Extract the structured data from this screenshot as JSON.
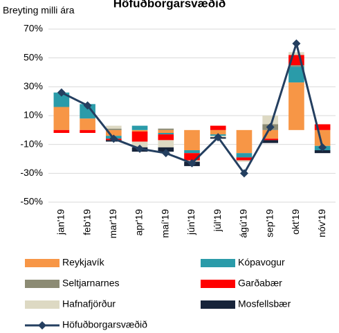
{
  "chart_data": {
    "type": "bar",
    "title": "Höfuðborgarsvæðið",
    "subtitle": "Breyting milli ára",
    "stacked": true,
    "grid": true,
    "categories": [
      "jan'19",
      "feb'19",
      "mar'19",
      "apr'19",
      "maí'19",
      "jún'19",
      "júl'19",
      "ágú'19",
      "sep'19",
      "okt'19",
      "nóv'19"
    ],
    "ylim": [
      -50,
      70
    ],
    "yticks": [
      {
        "value": -50,
        "label": "-50%"
      },
      {
        "value": -30,
        "label": "-30%"
      },
      {
        "value": -10,
        "label": "-10%"
      },
      {
        "value": 10,
        "label": "10%"
      },
      {
        "value": 30,
        "label": "30%"
      },
      {
        "value": 50,
        "label": "50%"
      },
      {
        "value": 70,
        "label": "70%"
      }
    ],
    "series": [
      {
        "name": "Reykjavík",
        "color": "#f79646",
        "values": [
          16,
          8,
          -4,
          -1,
          -2,
          -14,
          -3,
          -16,
          -6,
          33,
          -11
        ]
      },
      {
        "name": "Kópavogur",
        "color": "#2a9ba9",
        "values": [
          10,
          10,
          -2,
          3,
          -1,
          -2,
          -1,
          -3,
          0,
          11,
          -3
        ]
      },
      {
        "name": "Seltjarnarnes",
        "color": "#8c8b74",
        "values": [
          0,
          0,
          1,
          0,
          1,
          0,
          0,
          0,
          4,
          1,
          0
        ]
      },
      {
        "name": "Garðabær",
        "color": "#ff0000",
        "values": [
          -2,
          -2,
          -1,
          -7,
          -4,
          -5,
          3,
          -2,
          -1,
          7,
          4
        ]
      },
      {
        "name": "Hafnafjörður",
        "color": "#ddd9c3",
        "values": [
          0,
          0,
          2,
          -4,
          -5,
          -1,
          -1,
          -1,
          6,
          2,
          0
        ]
      },
      {
        "name": "Mosfellsbær",
        "color": "#17243a",
        "values": [
          0,
          0,
          -1,
          -3,
          -3,
          -3,
          -1,
          0,
          -2,
          0,
          -2
        ]
      },
      {
        "name": "Höfuðborgarsvæðið",
        "type": "line",
        "color": "#243f60",
        "values": [
          26,
          17,
          -6,
          -13,
          -16,
          -23,
          -5,
          -30,
          2,
          60,
          -12
        ]
      }
    ]
  }
}
